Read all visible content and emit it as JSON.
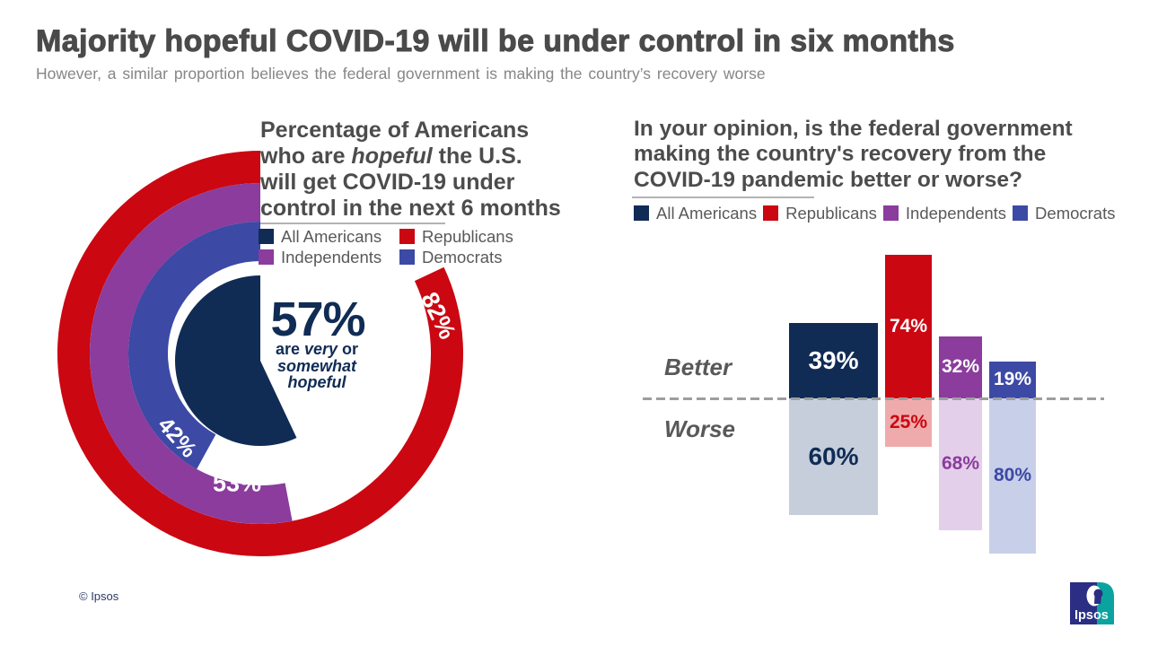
{
  "header": {
    "title": "Majority hopeful COVID-19 will be under control in six months",
    "subtitle": "However, a similar proportion believes the federal government is making the country’s recovery worse"
  },
  "chart_data": [
    {
      "type": "donut",
      "subtype": "concentric-rings-with-center-pie",
      "title": "Percentage of Americans who are hopeful the U.S. will get COVID-19 under control in the next 6 months",
      "title_lines": [
        "Percentage of Americans",
        "who are ^hopeful^ the U.S.",
        "will get COVID-19 under",
        "control in the next 6 months"
      ],
      "units": "%",
      "legend_order": [
        "All Americans",
        "Republicans",
        "Independents",
        "Democrats"
      ],
      "series": [
        {
          "name": "All Americans",
          "value": 57,
          "label": "57%",
          "color": "#102c55",
          "render": "center_pie"
        },
        {
          "name": "Republicans",
          "value": 82,
          "label": "82%",
          "color": "#cb0712",
          "render": "ring_outer"
        },
        {
          "name": "Independents",
          "value": 53,
          "label": "53%",
          "color": "#8b3c9d",
          "render": "ring_middle"
        },
        {
          "name": "Democrats",
          "value": 42,
          "label": "42%",
          "color": "#3c49a5",
          "render": "ring_inner"
        }
      ],
      "center_value_label": "57%",
      "center_caption": "are very or somewhat hopeful",
      "center_caption_lines": [
        "are ^very^ or",
        "^somewhat^",
        "^hopeful^"
      ]
    },
    {
      "type": "bar",
      "subtype": "diverging_vertical",
      "title": "In your opinion, is the federal government making the country's recovery from the COVID-19 pandemic better or worse?",
      "title_lines": [
        "In your opinion, is the federal government",
        "making the country's recovery from the",
        "COVID-19 pandemic better or worse?"
      ],
      "units": "%",
      "categories": [
        "All Americans",
        "Republicans",
        "Independents",
        "Democrats"
      ],
      "series": [
        {
          "name": "Better",
          "values": [
            39,
            74,
            32,
            19
          ],
          "labels": [
            "39%",
            "74%",
            "32%",
            "19%"
          ]
        },
        {
          "name": "Worse",
          "values": [
            60,
            25,
            68,
            80
          ],
          "labels": [
            "60%",
            "25%",
            "68%",
            "80%"
          ]
        }
      ],
      "colors_better": [
        "#102c55",
        "#cb0712",
        "#8b3c9d",
        "#3c49a5"
      ],
      "colors_worse": [
        "#c6cedb",
        "#efabab",
        "#e3cfe9",
        "#c8cfe9"
      ],
      "baseline_style": "dashed",
      "legend_position": "top"
    }
  ],
  "footer": {
    "copyright": "© Ipsos",
    "logo_text": "Ipsos",
    "logo_colors": {
      "left": "#2b2e83",
      "right": "#0ba3a0"
    }
  }
}
